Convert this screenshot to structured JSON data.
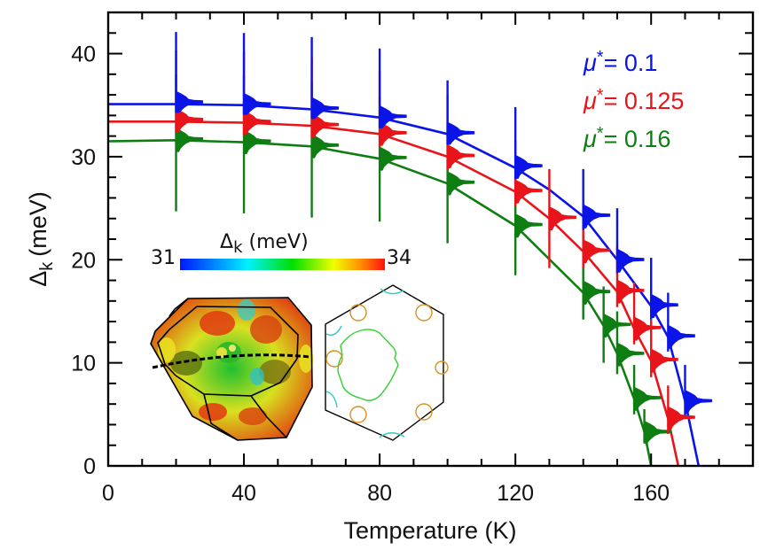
{
  "chart_data": {
    "type": "line",
    "title": "",
    "xlabel": "Temperature (K)",
    "ylabel_main": "Δ",
    "ylabel_sub": "k",
    "ylabel_unit": "(meV)",
    "xlim": [
      0,
      190
    ],
    "ylim": [
      0,
      44
    ],
    "x_ticks": [
      0,
      40,
      80,
      120,
      160
    ],
    "x_minor_step": 10,
    "y_ticks": [
      0,
      10,
      20,
      30,
      40
    ],
    "y_minor_step": 2,
    "grid": false,
    "legend_position": "top-right",
    "series": [
      {
        "name": "μ*= 0.1",
        "legend_symbol": "μ",
        "legend_sup": "*",
        "legend_value": "= 0.1",
        "color": "#0a14e6",
        "curve": {
          "x": [
            0,
            20,
            40,
            60,
            80,
            100,
            120,
            130,
            140,
            150,
            160,
            165,
            170,
            174
          ],
          "y": [
            35.1,
            35.1,
            35.0,
            34.6,
            33.8,
            32.2,
            28.9,
            26.8,
            24.2,
            20.0,
            15.5,
            12.5,
            6.3,
            0
          ]
        },
        "points": [
          {
            "T": 20,
            "peak": 35.3,
            "max": 42.1,
            "min": 34.3
          },
          {
            "T": 40,
            "peak": 35.1,
            "max": 42.0,
            "min": 34.1
          },
          {
            "T": 60,
            "peak": 34.7,
            "max": 41.6,
            "min": 33.7
          },
          {
            "T": 80,
            "peak": 33.9,
            "max": 40.5,
            "min": 32.8
          },
          {
            "T": 100,
            "peak": 32.3,
            "max": 37.4,
            "min": 31.2
          },
          {
            "T": 120,
            "peak": 29.1,
            "max": 34.8,
            "min": 27.8
          },
          {
            "T": 140,
            "peak": 24.3,
            "max": 28.8,
            "min": 22.9
          },
          {
            "T": 150,
            "peak": 20.0,
            "max": 25.0,
            "min": 18.7
          },
          {
            "T": 160,
            "peak": 15.6,
            "max": 20.2,
            "min": 14.2
          },
          {
            "T": 165,
            "peak": 12.6,
            "max": 16.8,
            "min": 11.1
          },
          {
            "T": 170,
            "peak": 6.3,
            "max": 9.8,
            "min": 4.9
          }
        ]
      },
      {
        "name": "μ*= 0.125",
        "legend_symbol": "μ",
        "legend_sup": "*",
        "legend_value": "= 0.125",
        "color": "#e8141a",
        "curve": {
          "x": [
            0,
            20,
            40,
            60,
            80,
            100,
            120,
            130,
            140,
            150,
            155,
            160,
            165,
            168
          ],
          "y": [
            33.4,
            33.4,
            33.3,
            33.0,
            32.2,
            30.0,
            26.6,
            24.0,
            20.8,
            16.9,
            13.3,
            10.2,
            4.6,
            0
          ]
        },
        "points": [
          {
            "T": 20,
            "peak": 33.6,
            "max": 40.3,
            "min": 32.3
          },
          {
            "T": 40,
            "peak": 33.4,
            "max": 40.2,
            "min": 32.1
          },
          {
            "T": 60,
            "peak": 33.1,
            "max": 39.6,
            "min": 31.8
          },
          {
            "T": 80,
            "peak": 32.3,
            "max": 38.3,
            "min": 30.9
          },
          {
            "T": 100,
            "peak": 30.1,
            "max": 36.0,
            "min": 28.7
          },
          {
            "T": 120,
            "peak": 26.7,
            "max": 31.6,
            "min": 25.2
          },
          {
            "T": 130,
            "peak": 24.1,
            "max": 28.8,
            "min": 19.2
          },
          {
            "T": 140,
            "peak": 20.9,
            "max": 25.5,
            "min": 19.2
          },
          {
            "T": 150,
            "peak": 17.0,
            "max": 21.3,
            "min": 15.4
          },
          {
            "T": 155,
            "peak": 13.4,
            "max": 17.8,
            "min": 11.8
          },
          {
            "T": 160,
            "peak": 10.3,
            "max": 14.2,
            "min": 8.6
          },
          {
            "T": 165,
            "peak": 4.7,
            "max": 7.8,
            "min": 3.1
          }
        ]
      },
      {
        "name": "μ*= 0.16",
        "legend_symbol": "μ",
        "legend_sup": "*",
        "legend_value": "= 0.16",
        "color": "#0e7d12",
        "curve": {
          "x": [
            0,
            20,
            40,
            60,
            80,
            100,
            120,
            140,
            146,
            150,
            155,
            158,
            160
          ],
          "y": [
            31.5,
            31.6,
            31.4,
            31.0,
            29.8,
            27.4,
            23.3,
            16.8,
            13.6,
            10.9,
            6.5,
            3.3,
            0
          ]
        },
        "points": [
          {
            "T": 20,
            "peak": 31.7,
            "max": 38.0,
            "min": 24.7
          },
          {
            "T": 40,
            "peak": 31.5,
            "max": 37.9,
            "min": 24.5
          },
          {
            "T": 60,
            "peak": 31.1,
            "max": 37.2,
            "min": 24.1
          },
          {
            "T": 80,
            "peak": 29.9,
            "max": 35.8,
            "min": 23.7
          },
          {
            "T": 100,
            "peak": 27.5,
            "max": 33.2,
            "min": 21.6
          },
          {
            "T": 120,
            "peak": 23.4,
            "max": 28.0,
            "min": 18.5
          },
          {
            "T": 140,
            "peak": 16.9,
            "max": 22.4,
            "min": 14.2
          },
          {
            "T": 146,
            "peak": 13.7,
            "max": 17.4,
            "min": 10.0
          },
          {
            "T": 150,
            "peak": 10.9,
            "max": 15.0,
            "min": 8.9
          },
          {
            "T": 155,
            "peak": 6.6,
            "max": 9.8,
            "min": 5.0
          },
          {
            "T": 158,
            "peak": 3.3,
            "max": 5.5,
            "min": 2.2
          }
        ]
      }
    ],
    "inset": {
      "colorbar": {
        "label_main": "Δ",
        "label_sub": "k",
        "label_unit": " (meV)",
        "min_label": "31",
        "max_label": "34",
        "range": [
          31,
          34
        ],
        "colormap": [
          "#0000ff",
          "#00ffff",
          "#00e000",
          "#ffff00",
          "#ff8c00",
          "#ff0000"
        ]
      },
      "panels": [
        {
          "name": "3D Fermi surface in truncated-octahedron Brillouin zone, colored by Δk"
        },
        {
          "name": "2D hexagonal cut of the Fermi surface colored by Δk"
        }
      ]
    }
  }
}
